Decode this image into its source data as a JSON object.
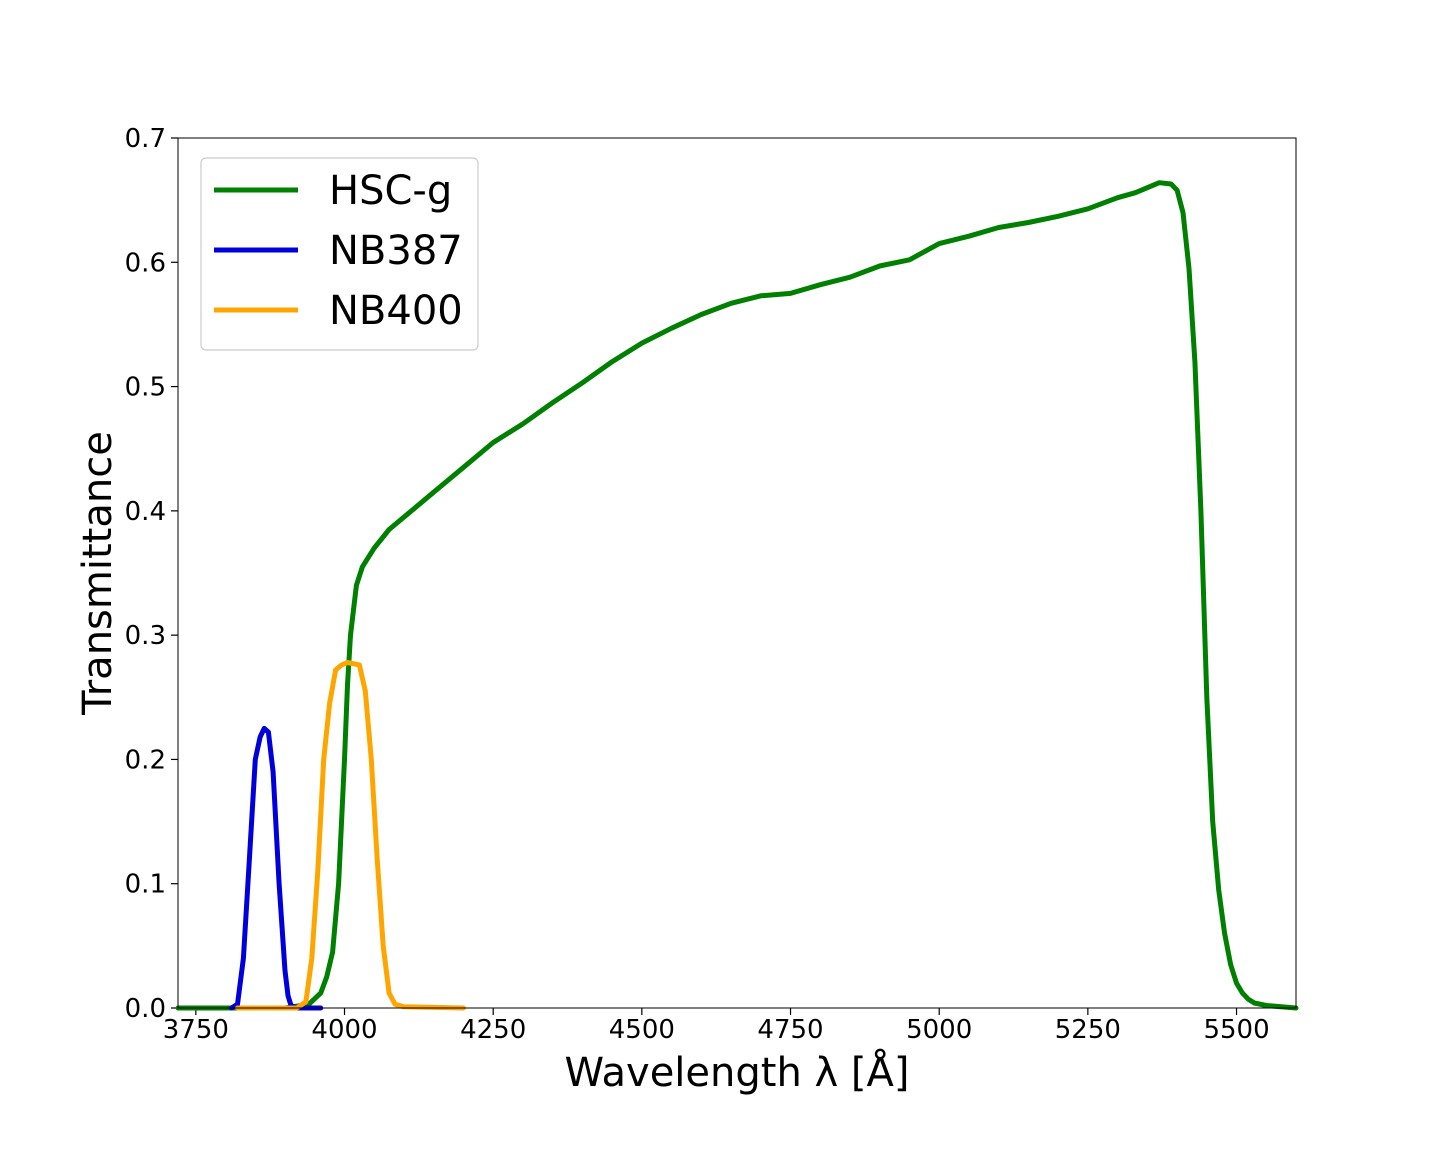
{
  "chart_data": {
    "type": "line",
    "title": "",
    "xlabel": "Wavelength λ [Å]",
    "ylabel": "Transmittance",
    "xlim": [
      3720,
      5600
    ],
    "ylim": [
      0,
      0.7
    ],
    "xticks": [
      3750,
      4000,
      4250,
      4500,
      4750,
      5000,
      5250,
      5500
    ],
    "yticks": [
      0.0,
      0.1,
      0.2,
      0.3,
      0.4,
      0.5,
      0.6,
      0.7
    ],
    "xtick_labels": [
      "3750",
      "4000",
      "4250",
      "4500",
      "4750",
      "5000",
      "5250",
      "5500"
    ],
    "ytick_labels": [
      "0.0",
      "0.1",
      "0.2",
      "0.3",
      "0.4",
      "0.5",
      "0.6",
      "0.7"
    ],
    "grid": false,
    "legend_position": "top-left",
    "series": [
      {
        "name": "HSC-g",
        "color": "#008000",
        "x": [
          3720,
          3900,
          3940,
          3960,
          3970,
          3980,
          3990,
          4000,
          4005,
          4010,
          4020,
          4030,
          4050,
          4075,
          4100,
          4150,
          4200,
          4250,
          4300,
          4350,
          4400,
          4450,
          4500,
          4550,
          4600,
          4650,
          4700,
          4750,
          4800,
          4850,
          4900,
          4950,
          5000,
          5050,
          5100,
          5150,
          5200,
          5250,
          5300,
          5330,
          5350,
          5370,
          5390,
          5400,
          5410,
          5420,
          5430,
          5440,
          5450,
          5460,
          5470,
          5480,
          5490,
          5500,
          5510,
          5520,
          5530,
          5550,
          5600
        ],
        "y": [
          0.0,
          0.0,
          0.003,
          0.012,
          0.025,
          0.045,
          0.1,
          0.2,
          0.26,
          0.3,
          0.34,
          0.355,
          0.37,
          0.385,
          0.395,
          0.415,
          0.435,
          0.455,
          0.47,
          0.487,
          0.503,
          0.52,
          0.535,
          0.547,
          0.558,
          0.567,
          0.573,
          0.575,
          0.582,
          0.588,
          0.597,
          0.602,
          0.615,
          0.621,
          0.628,
          0.632,
          0.637,
          0.643,
          0.652,
          0.656,
          0.66,
          0.664,
          0.663,
          0.658,
          0.64,
          0.595,
          0.52,
          0.4,
          0.25,
          0.15,
          0.095,
          0.06,
          0.035,
          0.02,
          0.012,
          0.007,
          0.004,
          0.002,
          0.0
        ]
      },
      {
        "name": "NB387",
        "color": "#0000dd",
        "x": [
          3810,
          3820,
          3830,
          3840,
          3850,
          3858,
          3865,
          3872,
          3880,
          3890,
          3900,
          3905,
          3910,
          3920,
          3960
        ],
        "y": [
          0.0,
          0.003,
          0.04,
          0.12,
          0.2,
          0.218,
          0.225,
          0.222,
          0.19,
          0.1,
          0.03,
          0.01,
          0.002,
          0.0,
          0.0
        ]
      },
      {
        "name": "NB400",
        "color": "#ffa500",
        "x": [
          3820,
          3920,
          3935,
          3945,
          3955,
          3965,
          3975,
          3985,
          3995,
          4005,
          4015,
          4025,
          4035,
          4045,
          4055,
          4065,
          4075,
          4085,
          4100,
          4200
        ],
        "y": [
          0.0,
          0.0,
          0.005,
          0.04,
          0.11,
          0.2,
          0.245,
          0.272,
          0.276,
          0.278,
          0.277,
          0.276,
          0.255,
          0.2,
          0.12,
          0.05,
          0.012,
          0.003,
          0.001,
          0.0
        ]
      }
    ]
  }
}
